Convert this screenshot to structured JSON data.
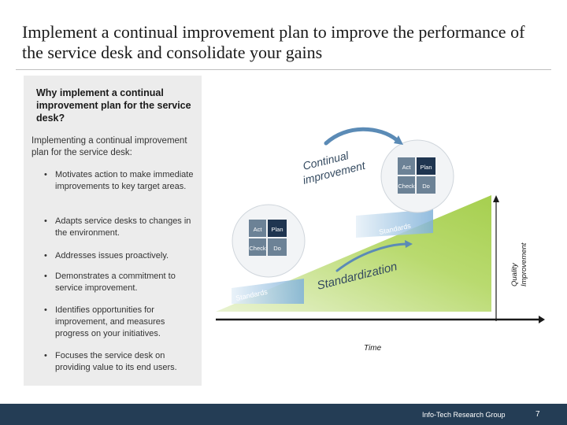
{
  "slide": {
    "title": "Implement a continual improvement plan to improve the performance of the service desk and consolidate your gains"
  },
  "sidebar": {
    "question": "Why implement a continual improvement plan for the service desk?",
    "intro": "Implementing a continual improvement plan for the service desk:",
    "bullet_glyph": "•",
    "bullets": [
      "Motivates action to make immediate improvements to key target areas.",
      "Adapts service desks to changes in the environment.",
      "Addresses issues proactively.",
      "Demonstrates a commitment to service improvement.",
      "Identifies opportunities for improvement, and measures progress on your initiatives.",
      "Focuses the service desk on providing value to its end users."
    ]
  },
  "diagram": {
    "colors": {
      "ramp": "#a6cf4f",
      "wedge": "#7fb1d9",
      "quadrant_dark": "#1f3550",
      "quadrant_light": "#6c8296",
      "arrow": "#5b8bb6"
    },
    "icons": [
      "pdca-wheel",
      "curved-arrow-icon"
    ],
    "continual_line1": "Continual",
    "continual_line2": "improvement",
    "standardization": "Standardization",
    "standards": "Standards",
    "cycle": {
      "act": "Act",
      "plan": "Plan",
      "check": "Check",
      "do": "Do"
    },
    "y_axis": {
      "line1": "Quality",
      "line2": "Improvement"
    },
    "x_axis": "Time"
  },
  "footer": {
    "org": "Info-Tech Research Group",
    "page": "7"
  }
}
